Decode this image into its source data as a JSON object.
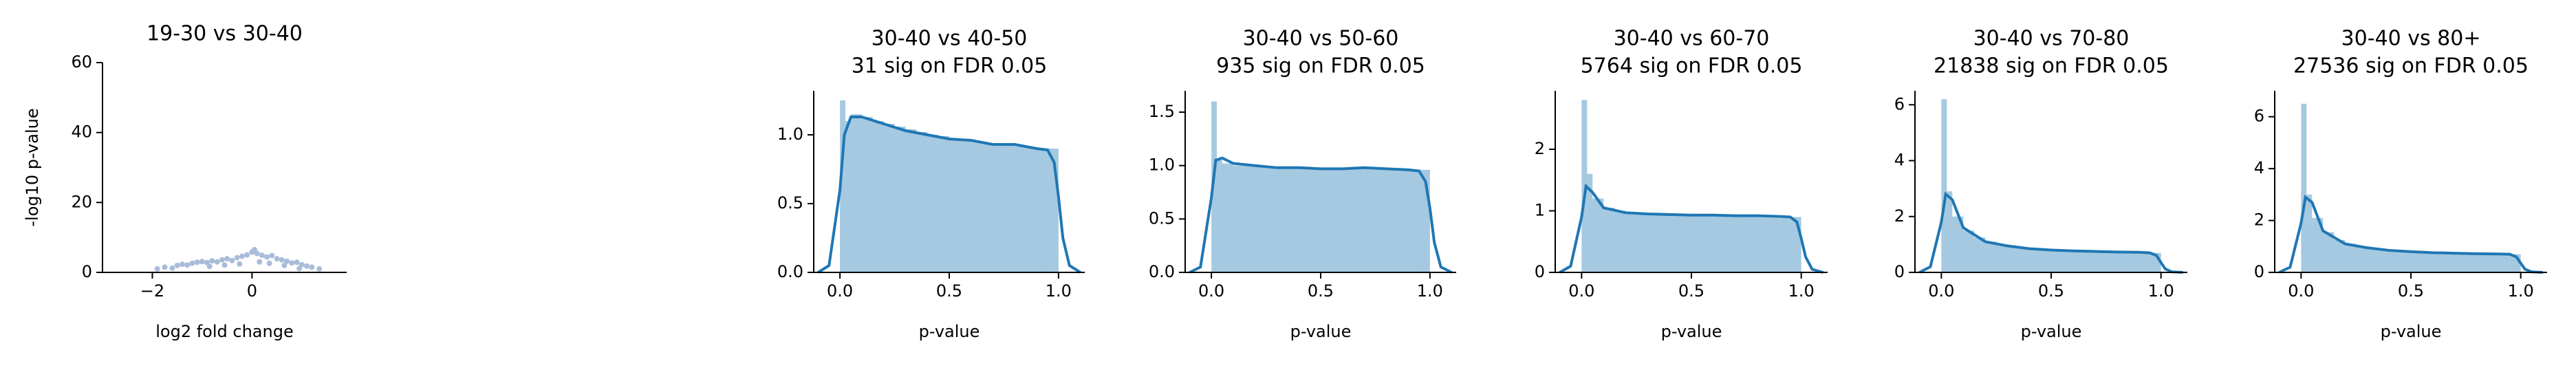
{
  "chart_data": [
    {
      "type": "scatter",
      "title": "19-30 vs 30-40",
      "xlabel": "log2 fold change",
      "ylabel": "-log10 p-value",
      "color": "#a9bcd9",
      "x": [
        -1.9,
        -1.75,
        -1.6,
        -1.5,
        -1.4,
        -1.3,
        -1.2,
        -1.1,
        -1.0,
        -0.9,
        -0.8,
        -0.7,
        -0.6,
        -0.5,
        -0.4,
        -0.3,
        -0.2,
        -0.1,
        0.0,
        0.05,
        0.1,
        0.2,
        0.3,
        0.4,
        0.5,
        0.6,
        0.7,
        0.8,
        0.9,
        1.0,
        1.1,
        1.2,
        1.35,
        -0.55,
        -0.25,
        0.15,
        0.35,
        -0.85,
        0.65,
        0.95
      ],
      "y": [
        1.0,
        1.5,
        1.2,
        2.0,
        2.3,
        2.1,
        2.6,
        2.9,
        3.1,
        2.8,
        3.3,
        3.0,
        3.6,
        3.9,
        3.4,
        4.2,
        4.6,
        5.0,
        5.8,
        6.5,
        5.4,
        4.9,
        4.4,
        4.8,
        3.9,
        3.6,
        3.2,
        2.7,
        2.9,
        2.2,
        1.8,
        1.5,
        1.0,
        2.1,
        2.4,
        3.0,
        2.6,
        1.7,
        2.0,
        1.1
      ],
      "xlim": [
        -3,
        1.9
      ],
      "ylim": [
        0,
        60
      ],
      "xticks": [
        {
          "value": -2,
          "label": "−2"
        },
        0
      ],
      "yticks": [
        0,
        20,
        40,
        60
      ]
    },
    {
      "type": "histogram",
      "title": "30-40 vs 40-50",
      "subtitle": "31 sig on FDR 0.05",
      "xlabel": "p-value",
      "color": "#1f77b4",
      "bins": [
        0,
        0.025,
        0.05,
        0.1,
        0.15,
        0.2,
        0.25,
        0.3,
        0.35,
        0.4,
        0.45,
        0.5,
        0.55,
        0.6,
        0.65,
        0.7,
        0.75,
        0.8,
        0.85,
        0.9,
        0.95,
        1.0
      ],
      "counts": [
        1.25,
        1.1,
        1.15,
        1.13,
        1.1,
        1.08,
        1.06,
        1.04,
        1.02,
        1.0,
        0.99,
        0.97,
        0.96,
        0.95,
        0.94,
        0.93,
        0.92,
        0.92,
        0.91,
        0.9,
        0.9
      ],
      "kde": {
        "x": [
          -0.1,
          -0.05,
          0,
          0.02,
          0.05,
          0.1,
          0.2,
          0.3,
          0.4,
          0.5,
          0.6,
          0.7,
          0.8,
          0.9,
          0.95,
          0.98,
          1.0,
          1.02,
          1.05,
          1.1
        ],
        "y": [
          0,
          0.05,
          0.6,
          1.0,
          1.13,
          1.13,
          1.08,
          1.03,
          1.0,
          0.97,
          0.96,
          0.93,
          0.93,
          0.9,
          0.89,
          0.8,
          0.55,
          0.25,
          0.05,
          0
        ]
      },
      "xlim": [
        -0.12,
        1.12
      ],
      "ylim": [
        0,
        1.32
      ],
      "xticks": [
        {
          "value": 0,
          "label": "0.0"
        },
        0.5,
        {
          "value": 1,
          "label": "1.0"
        }
      ],
      "yticks": [
        {
          "value": 0,
          "label": "0.0"
        },
        0.5,
        {
          "value": 1,
          "label": "1.0"
        }
      ]
    },
    {
      "type": "histogram",
      "title": "30-40 vs 50-60",
      "subtitle": "935 sig on FDR 0.05",
      "xlabel": "p-value",
      "color": "#1f77b4",
      "bins": [
        0,
        0.025,
        0.05,
        0.1,
        0.15,
        0.2,
        0.25,
        0.3,
        0.35,
        0.4,
        0.45,
        0.5,
        0.55,
        0.6,
        0.65,
        0.7,
        0.75,
        0.8,
        0.85,
        0.9,
        0.95,
        1.0
      ],
      "counts": [
        1.6,
        1.05,
        1.02,
        1.0,
        1.0,
        0.99,
        0.99,
        0.98,
        0.98,
        0.98,
        0.98,
        0.97,
        0.97,
        0.97,
        0.97,
        0.97,
        0.97,
        0.96,
        0.96,
        0.96,
        0.96
      ],
      "kde": {
        "x": [
          -0.1,
          -0.05,
          0,
          0.02,
          0.05,
          0.1,
          0.2,
          0.3,
          0.4,
          0.5,
          0.6,
          0.7,
          0.8,
          0.9,
          0.95,
          0.98,
          1.0,
          1.02,
          1.05,
          1.1
        ],
        "y": [
          0,
          0.05,
          0.7,
          1.05,
          1.07,
          1.02,
          1.0,
          0.98,
          0.98,
          0.97,
          0.97,
          0.98,
          0.97,
          0.96,
          0.95,
          0.85,
          0.6,
          0.28,
          0.05,
          0
        ]
      },
      "xlim": [
        -0.12,
        1.12
      ],
      "ylim": [
        0,
        1.7
      ],
      "xticks": [
        {
          "value": 0,
          "label": "0.0"
        },
        0.5,
        {
          "value": 1,
          "label": "1.0"
        }
      ],
      "yticks": [
        {
          "value": 0,
          "label": "0.0"
        },
        0.5,
        {
          "value": 1,
          "label": "1.0"
        },
        1.5
      ]
    },
    {
      "type": "histogram",
      "title": "30-40 vs 60-70",
      "subtitle": "5764 sig on FDR 0.05",
      "xlabel": "p-value",
      "color": "#1f77b4",
      "bins": [
        0,
        0.025,
        0.05,
        0.1,
        0.15,
        0.2,
        0.25,
        0.3,
        0.35,
        0.4,
        0.45,
        0.5,
        0.55,
        0.6,
        0.65,
        0.7,
        0.75,
        0.8,
        0.85,
        0.9,
        0.95,
        1.0
      ],
      "counts": [
        2.8,
        1.6,
        1.2,
        1.05,
        1.0,
        0.98,
        0.96,
        0.95,
        0.94,
        0.93,
        0.93,
        0.92,
        0.92,
        0.92,
        0.91,
        0.91,
        0.91,
        0.91,
        0.9,
        0.9,
        0.9
      ],
      "kde": {
        "x": [
          -0.1,
          -0.05,
          0,
          0.02,
          0.05,
          0.1,
          0.2,
          0.3,
          0.4,
          0.5,
          0.6,
          0.7,
          0.8,
          0.9,
          0.95,
          0.98,
          1.0,
          1.02,
          1.05,
          1.1
        ],
        "y": [
          0,
          0.1,
          0.9,
          1.4,
          1.3,
          1.05,
          0.97,
          0.95,
          0.94,
          0.93,
          0.93,
          0.92,
          0.92,
          0.91,
          0.9,
          0.82,
          0.55,
          0.25,
          0.05,
          0
        ]
      },
      "xlim": [
        -0.12,
        1.12
      ],
      "ylim": [
        0,
        2.95
      ],
      "xticks": [
        {
          "value": 0,
          "label": "0.0"
        },
        0.5,
        {
          "value": 1,
          "label": "1.0"
        }
      ],
      "yticks": [
        0,
        1,
        2
      ]
    },
    {
      "type": "histogram",
      "title": "30-40 vs 70-80",
      "subtitle": "21838 sig on FDR 0.05",
      "xlabel": "p-value",
      "color": "#1f77b4",
      "bins": [
        0,
        0.025,
        0.05,
        0.1,
        0.15,
        0.2,
        0.25,
        0.3,
        0.35,
        0.4,
        0.45,
        0.5,
        0.55,
        0.6,
        0.65,
        0.7,
        0.75,
        0.8,
        0.85,
        0.9,
        0.95,
        1.0
      ],
      "counts": [
        6.2,
        2.9,
        2.0,
        1.5,
        1.25,
        1.1,
        1.0,
        0.95,
        0.9,
        0.87,
        0.84,
        0.82,
        0.8,
        0.78,
        0.77,
        0.76,
        0.75,
        0.74,
        0.73,
        0.72,
        0.7
      ],
      "kde": {
        "x": [
          -0.1,
          -0.05,
          0,
          0.02,
          0.05,
          0.1,
          0.2,
          0.3,
          0.4,
          0.5,
          0.6,
          0.7,
          0.8,
          0.9,
          0.95,
          0.98,
          1.0,
          1.02,
          1.05,
          1.1
        ],
        "y": [
          0,
          0.2,
          1.8,
          2.8,
          2.6,
          1.6,
          1.1,
          0.95,
          0.85,
          0.8,
          0.77,
          0.75,
          0.73,
          0.72,
          0.7,
          0.6,
          0.35,
          0.12,
          0.02,
          0
        ]
      },
      "xlim": [
        -0.12,
        1.12
      ],
      "ylim": [
        0,
        6.5
      ],
      "xticks": [
        {
          "value": 0,
          "label": "0.0"
        },
        0.5,
        {
          "value": 1,
          "label": "1.0"
        }
      ],
      "yticks": [
        0,
        2,
        4,
        6
      ]
    },
    {
      "type": "histogram",
      "title": "30-40 vs 80+",
      "subtitle": "27536 sig on FDR 0.05",
      "xlabel": "p-value",
      "color": "#1f77b4",
      "bins": [
        0,
        0.025,
        0.05,
        0.1,
        0.15,
        0.2,
        0.25,
        0.3,
        0.35,
        0.4,
        0.45,
        0.5,
        0.55,
        0.6,
        0.65,
        0.7,
        0.75,
        0.8,
        0.85,
        0.9,
        0.95,
        1.0
      ],
      "counts": [
        6.5,
        3.0,
        2.1,
        1.55,
        1.25,
        1.1,
        1.0,
        0.93,
        0.88,
        0.85,
        0.82,
        0.8,
        0.78,
        0.76,
        0.75,
        0.74,
        0.73,
        0.72,
        0.71,
        0.7,
        0.7
      ],
      "kde": {
        "x": [
          -0.1,
          -0.05,
          0,
          0.02,
          0.05,
          0.1,
          0.2,
          0.3,
          0.4,
          0.5,
          0.6,
          0.7,
          0.8,
          0.9,
          0.95,
          0.98,
          1.0,
          1.02,
          1.05,
          1.1
        ],
        "y": [
          0,
          0.2,
          1.9,
          2.9,
          2.7,
          1.6,
          1.1,
          0.95,
          0.85,
          0.8,
          0.76,
          0.74,
          0.72,
          0.71,
          0.7,
          0.6,
          0.35,
          0.12,
          0.02,
          0
        ]
      },
      "xlim": [
        -0.12,
        1.12
      ],
      "ylim": [
        0,
        7
      ],
      "xticks": [
        {
          "value": 0,
          "label": "0.0"
        },
        0.5,
        {
          "value": 1,
          "label": "1.0"
        }
      ],
      "yticks": [
        0,
        2,
        4,
        6
      ]
    }
  ]
}
